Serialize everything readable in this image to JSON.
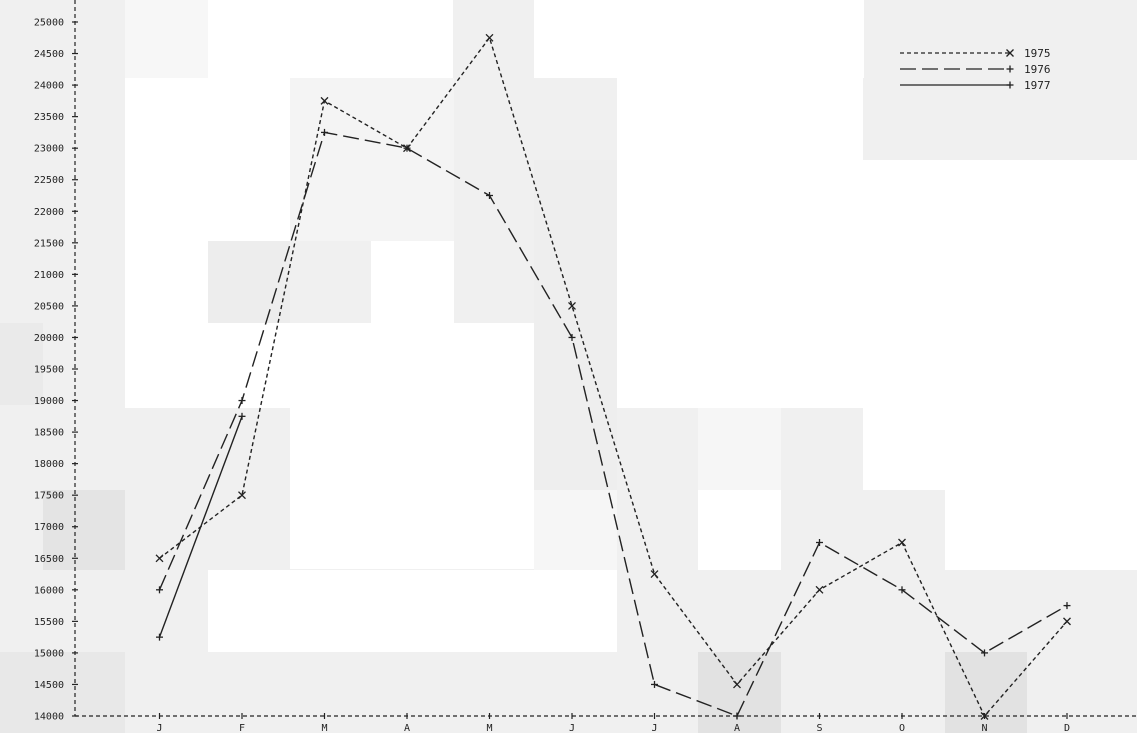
{
  "chart_data": {
    "type": "line",
    "title": "",
    "xlabel": "",
    "ylabel": "",
    "categories": [
      "J",
      "F",
      "M",
      "A",
      "M",
      "J",
      "J",
      "A",
      "S",
      "O",
      "N",
      "D"
    ],
    "y_ticks": [
      "14000",
      "14500",
      "15000",
      "15500",
      "16000",
      "16500",
      "17000",
      "17500",
      "18000",
      "18500",
      "19000",
      "19500",
      "20000",
      "20500",
      "21000",
      "21500",
      "22000",
      "22500",
      "23000",
      "23500",
      "24000",
      "24500",
      "25000"
    ],
    "ylim": [
      14000,
      25000
    ],
    "grid": false,
    "legend_position": "top-right",
    "series": [
      {
        "name": "1975",
        "marker": "x",
        "dash": "short",
        "color": "#222222",
        "values": [
          16500,
          17500,
          23750,
          23000,
          24750,
          20500,
          16250,
          14500,
          16000,
          16750,
          14000,
          15500
        ]
      },
      {
        "name": "1976",
        "marker": "+",
        "dash": "long",
        "color": "#222222",
        "values": [
          16000,
          19000,
          23250,
          23000,
          22250,
          20000,
          14500,
          14000,
          16750,
          16000,
          15000,
          15750
        ]
      },
      {
        "name": "1977",
        "marker": "+",
        "dash": "solid",
        "color": "#222222",
        "values": [
          15250,
          18750,
          null,
          null,
          null,
          null,
          null,
          null,
          null,
          null,
          null,
          null
        ]
      }
    ]
  }
}
